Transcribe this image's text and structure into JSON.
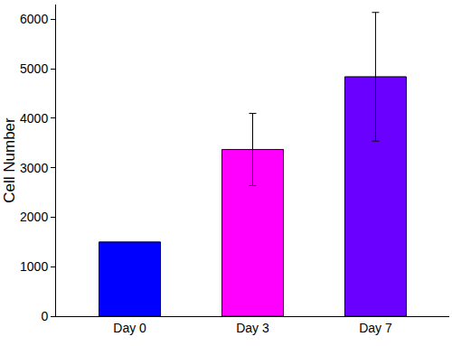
{
  "chart_data": {
    "type": "bar",
    "y_label": "Cell Number",
    "categories": [
      "Day 0",
      "Day 3",
      "Day 7"
    ],
    "values": [
      1500,
      3370,
      4840
    ],
    "errors": [
      null,
      730,
      1300
    ],
    "colors": [
      "#0000ff",
      "#ff00ff",
      "#6a00ff"
    ],
    "ylim": [
      0,
      6300
    ],
    "yticks": [
      0,
      1000,
      2000,
      3000,
      4000,
      5000,
      6000
    ],
    "grid": false
  }
}
